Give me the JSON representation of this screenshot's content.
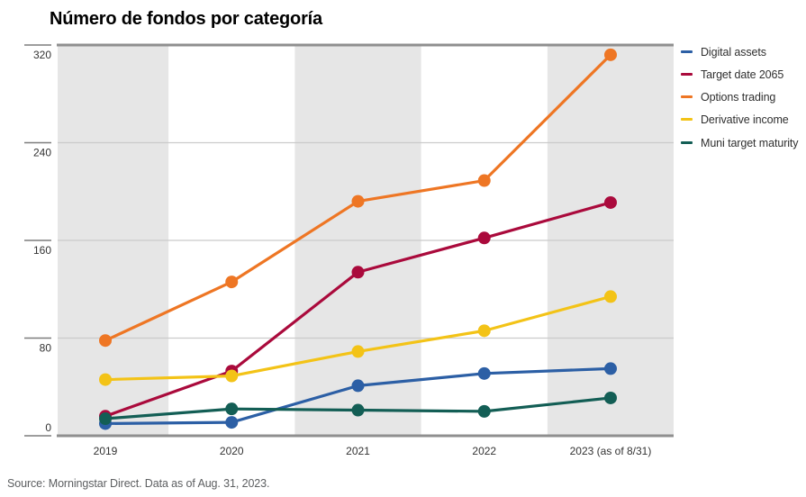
{
  "title": "Número de fondos por categoría",
  "source": "Source: Morningstar Direct. Data as of Aug. 31, 2023.",
  "colors": {
    "band_gray": "#e6e6e6",
    "gridline": "#cbcbcb",
    "axis_border": "#8f8f8f",
    "tick": "#7d7d7d",
    "axis_text": "#333333",
    "legend_text": "#2f2f2f",
    "source_text": "#5c5e60"
  },
  "chart_data": {
    "type": "line",
    "title": "Número de fondos por categoría",
    "categories": [
      "2019",
      "2020",
      "2021",
      "2022",
      "2023 (as of 8/31)"
    ],
    "series": [
      {
        "name": "Digital assets",
        "color": "#2c5fa5",
        "values": [
          10,
          11,
          41,
          51,
          55
        ]
      },
      {
        "name": "Target date 2065",
        "color": "#aa0a3c",
        "values": [
          16,
          53,
          134,
          162,
          191
        ]
      },
      {
        "name": "Options trading",
        "color": "#ee7624",
        "values": [
          78,
          126,
          192,
          209,
          312
        ]
      },
      {
        "name": "Derivative income",
        "color": "#f3c317",
        "values": [
          46,
          49,
          69,
          86,
          114
        ]
      },
      {
        "name": "Muni target maturity",
        "color": "#135e55",
        "values": [
          14,
          22,
          21,
          20,
          31
        ]
      }
    ],
    "xlabel": "",
    "ylabel": "",
    "ylim": [
      0,
      320
    ],
    "yticks": [
      0,
      80,
      160,
      240,
      320
    ],
    "grid": true,
    "legend_position": "right",
    "plot_style": "alternating vertical column shading (gray/white) per year"
  }
}
